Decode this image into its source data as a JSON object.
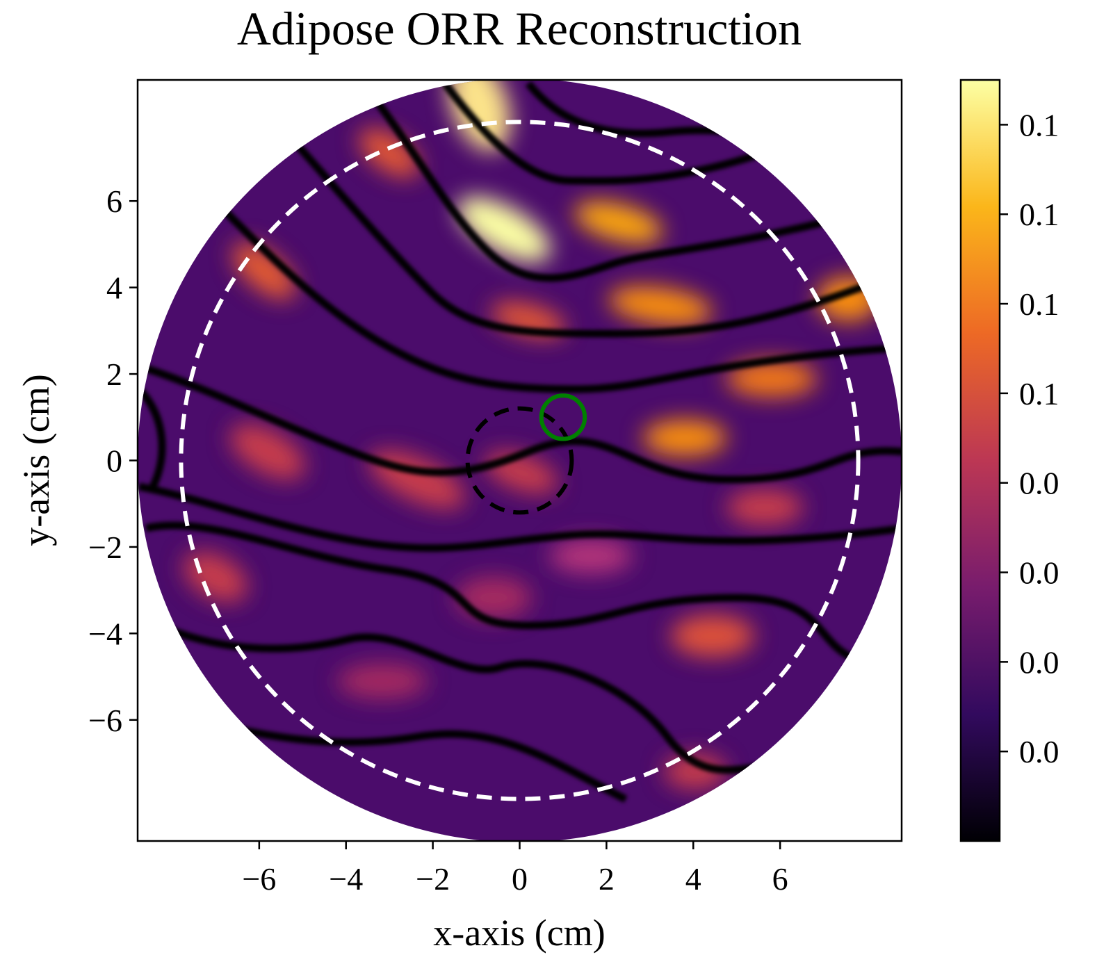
{
  "chart_data": {
    "type": "heatmap",
    "title": "Adipose ORR Reconstruction",
    "x_label": "x-axis (cm)",
    "y_label": "y-axis (cm)",
    "xlim": [
      -8.8,
      8.8
    ],
    "ylim": [
      -8.8,
      8.8
    ],
    "xticks": [
      {
        "value": -6,
        "label": "−6"
      },
      {
        "value": -4,
        "label": "−4"
      },
      {
        "value": -2,
        "label": "−2"
      },
      0,
      2,
      4,
      6
    ],
    "yticks": [
      {
        "value": -6,
        "label": "−6"
      },
      {
        "value": -4,
        "label": "−4"
      },
      {
        "value": -2,
        "label": "−2"
      },
      0,
      2,
      4,
      6
    ],
    "domain_radius": 8.8,
    "colorbar": {
      "clim": [
        0,
        0.085
      ],
      "ticks": [
        {
          "value": 0.01,
          "label": "0.0"
        },
        {
          "value": 0.02,
          "label": "0.0"
        },
        {
          "value": 0.03,
          "label": "0.0"
        },
        {
          "value": 0.04,
          "label": "0.0"
        },
        {
          "value": 0.05,
          "label": "0.1"
        },
        {
          "value": 0.06,
          "label": "0.1"
        },
        {
          "value": 0.07,
          "label": "0.1"
        },
        {
          "value": 0.08,
          "label": "0.1"
        }
      ],
      "colormap": [
        "#000004",
        "#320a5e",
        "#781c6d",
        "#bc3754",
        "#ed6925",
        "#fbb61a",
        "#fcffa4"
      ]
    },
    "circles": [
      {
        "cx": 0,
        "cy": 0,
        "r": 7.8,
        "color": "#ffffff",
        "style": "dashed"
      },
      {
        "cx": 0,
        "cy": 0,
        "r": 1.2,
        "color": "#000000",
        "style": "dashed"
      },
      {
        "cx": 1,
        "cy": 1,
        "r": 0.5,
        "color": "#008000",
        "style": "solid"
      }
    ]
  }
}
